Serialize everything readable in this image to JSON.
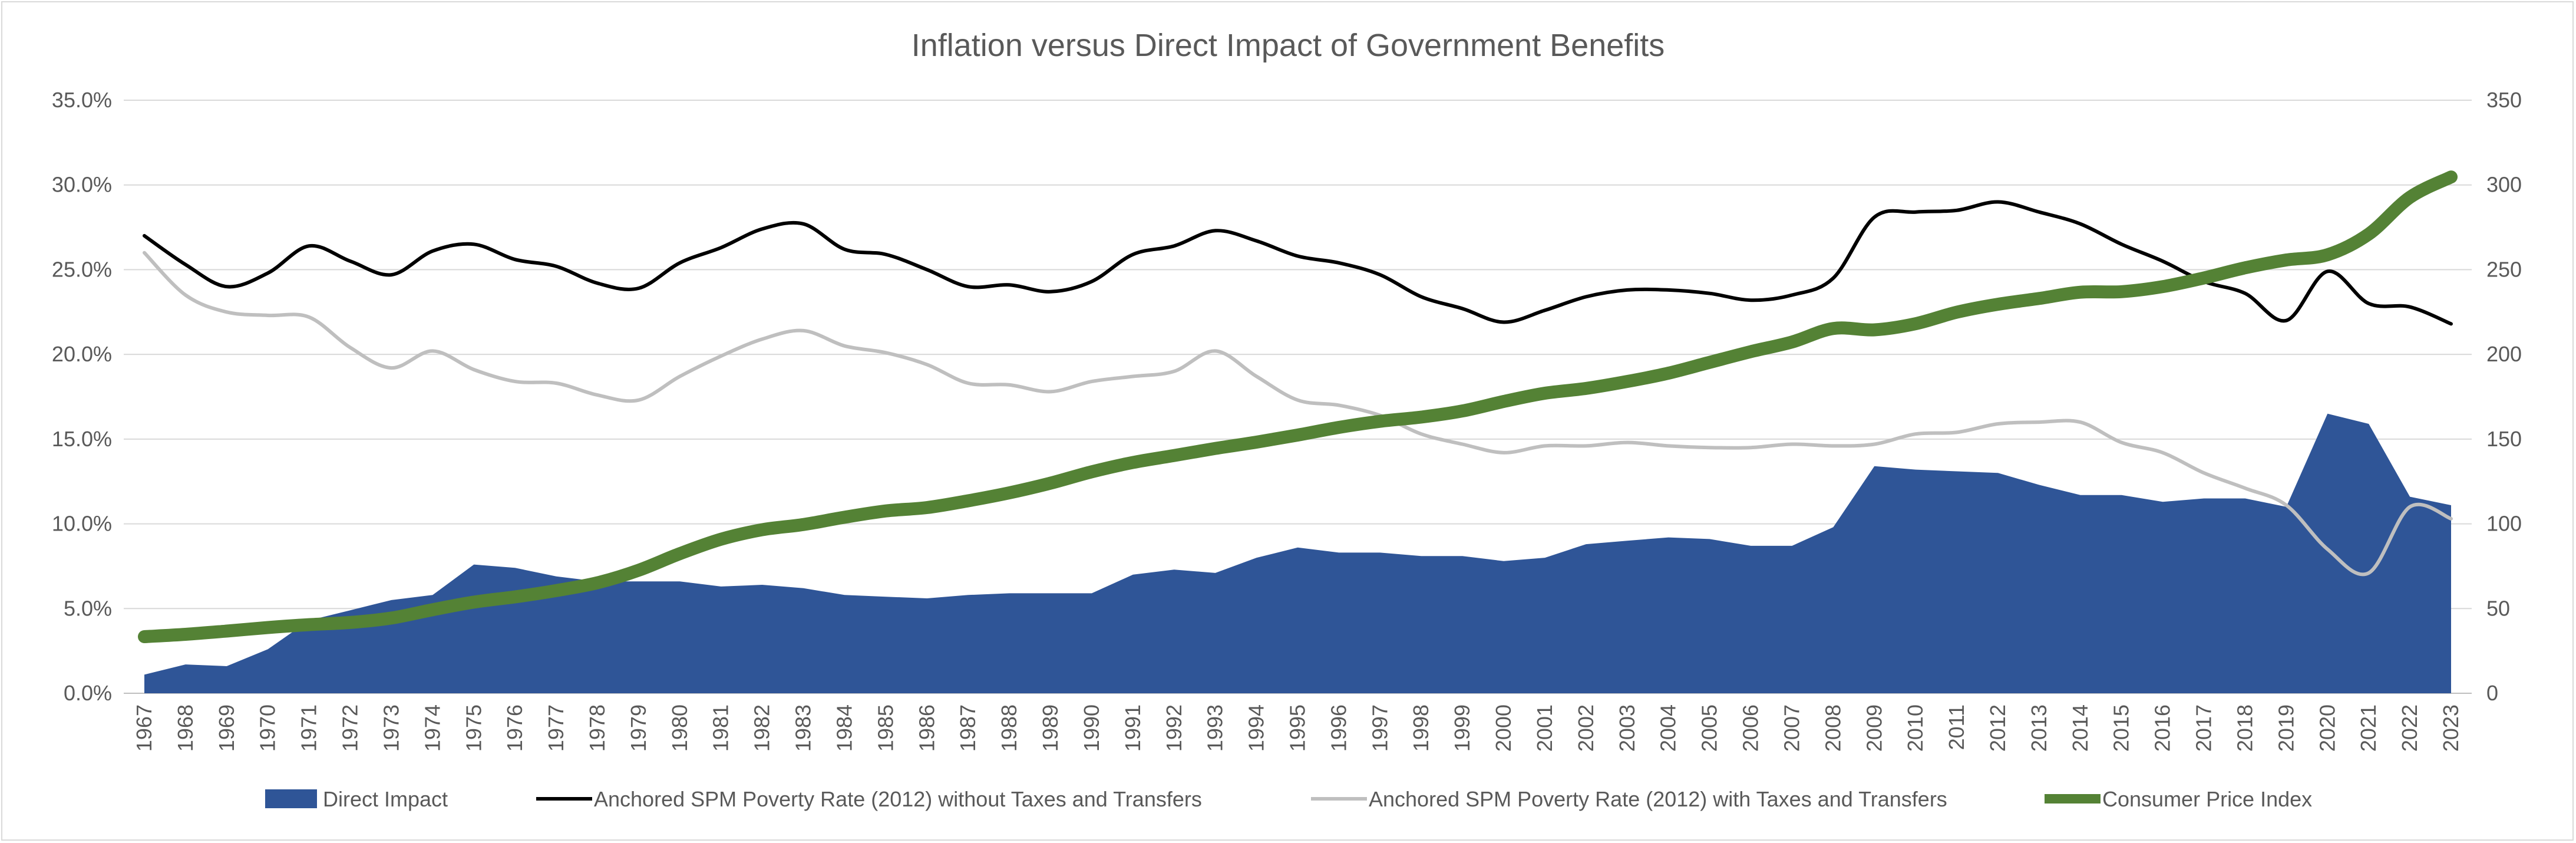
{
  "chart_data": {
    "type": "area",
    "title": "Inflation versus Direct Impact of Government Benefits",
    "x": [
      1967,
      1968,
      1969,
      1970,
      1971,
      1972,
      1973,
      1974,
      1975,
      1976,
      1977,
      1978,
      1979,
      1980,
      1981,
      1982,
      1983,
      1984,
      1985,
      1986,
      1987,
      1988,
      1989,
      1990,
      1991,
      1992,
      1993,
      1994,
      1995,
      1996,
      1997,
      1998,
      1999,
      2000,
      2001,
      2002,
      2003,
      2004,
      2005,
      2006,
      2007,
      2008,
      2009,
      2010,
      2011,
      2012,
      2013,
      2014,
      2015,
      2016,
      2017,
      2018,
      2019,
      2020,
      2021,
      2022,
      2023
    ],
    "x_tick_labels": [
      "1967",
      "1968",
      "1969",
      "1970",
      "1971",
      "1972",
      "1973",
      "1974",
      "1975",
      "1976",
      "1977",
      "1978",
      "1979",
      "1980",
      "1981",
      "1982",
      "1983",
      "1984",
      "1985",
      "1986",
      "1987",
      "1988",
      "1989",
      "1990",
      "1991",
      "1992",
      "1993",
      "1994",
      "1995",
      "1996",
      "1997",
      "1998",
      "1999",
      "2000",
      "2001",
      "2002",
      "2003",
      "2004",
      "2005",
      "2006",
      "2007",
      "2008",
      "2009",
      "2010",
      "2011",
      "2012",
      "2013",
      "2014",
      "2015",
      "2016",
      "2017",
      "2018",
      "2019",
      "2020",
      "2021",
      "2022",
      "2023"
    ],
    "y_left": {
      "ylim": [
        0,
        35
      ],
      "ticks": [
        "0.0%",
        "5.0%",
        "10.0%",
        "15.0%",
        "20.0%",
        "25.0%",
        "30.0%",
        "35.0%"
      ]
    },
    "y_right": {
      "ylim": [
        0,
        350
      ],
      "ticks": [
        "0",
        "50",
        "100",
        "150",
        "200",
        "250",
        "300",
        "350"
      ]
    },
    "grid": true,
    "legend_position": "bottom",
    "series": [
      {
        "name": "Direct Impact",
        "kind": "area",
        "axis": "left",
        "color": "#2f5597",
        "values": [
          1.1,
          1.7,
          1.6,
          2.6,
          4.3,
          4.9,
          5.5,
          5.8,
          7.6,
          7.4,
          6.9,
          6.6,
          6.6,
          6.6,
          6.3,
          6.4,
          6.2,
          5.8,
          5.7,
          5.6,
          5.8,
          5.9,
          5.9,
          5.9,
          7.0,
          7.3,
          7.1,
          8.0,
          8.6,
          8.3,
          8.3,
          8.1,
          8.1,
          7.8,
          8.0,
          8.8,
          9.0,
          9.2,
          9.1,
          8.7,
          8.7,
          9.8,
          13.4,
          13.2,
          13.1,
          13.0,
          12.3,
          11.7,
          11.7,
          11.3,
          11.5,
          11.5,
          11.0,
          16.5,
          15.9,
          11.6,
          11.1
        ]
      },
      {
        "name": "Anchored SPM Poverty Rate (2012) without Taxes and Transfers",
        "kind": "line",
        "axis": "left",
        "color": "#000000",
        "values": [
          27.0,
          25.3,
          24.0,
          24.8,
          26.4,
          25.5,
          24.7,
          26.1,
          26.5,
          25.6,
          25.2,
          24.2,
          23.9,
          25.4,
          26.3,
          27.4,
          27.7,
          26.2,
          25.9,
          25.0,
          24.0,
          24.1,
          23.7,
          24.3,
          25.9,
          26.4,
          27.3,
          26.7,
          25.8,
          25.4,
          24.7,
          23.4,
          22.7,
          21.9,
          22.6,
          23.4,
          23.8,
          23.8,
          23.6,
          23.2,
          23.5,
          24.5,
          28.1,
          28.4,
          28.5,
          29.0,
          28.4,
          27.7,
          26.5,
          25.5,
          24.3,
          23.6,
          22.0,
          24.9,
          23.0,
          22.8,
          21.8
        ]
      },
      {
        "name": "Anchored SPM Poverty Rate (2012) with Taxes and Transfers",
        "kind": "line",
        "axis": "left",
        "color": "#bfbfbf",
        "values": [
          26.0,
          23.5,
          22.5,
          22.3,
          22.2,
          20.4,
          19.2,
          20.2,
          19.1,
          18.4,
          18.3,
          17.6,
          17.3,
          18.7,
          19.9,
          20.9,
          21.4,
          20.5,
          20.1,
          19.4,
          18.3,
          18.2,
          17.8,
          18.4,
          18.7,
          19.0,
          20.2,
          18.7,
          17.3,
          17.0,
          16.4,
          15.3,
          14.7,
          14.2,
          14.6,
          14.6,
          14.8,
          14.6,
          14.5,
          14.5,
          14.7,
          14.6,
          14.7,
          15.3,
          15.4,
          15.9,
          16.0,
          16.0,
          14.8,
          14.2,
          13.0,
          12.1,
          11.1,
          8.5,
          7.1,
          11.0,
          10.3
        ]
      },
      {
        "name": "Consumer Price Index",
        "kind": "line",
        "axis": "right",
        "color": "#548235",
        "values": [
          33.4,
          34.8,
          36.7,
          38.8,
          40.5,
          41.8,
          44.4,
          49.3,
          53.8,
          56.9,
          60.6,
          65.2,
          72.6,
          82.4,
          90.9,
          96.5,
          99.6,
          103.9,
          107.6,
          109.6,
          113.6,
          118.3,
          124.0,
          130.7,
          136.2,
          140.3,
          144.5,
          148.2,
          152.4,
          156.9,
          160.5,
          163.0,
          166.6,
          172.2,
          177.1,
          179.9,
          184.0,
          188.9,
          195.3,
          201.6,
          207.3,
          215.3,
          214.5,
          218.1,
          224.9,
          229.6,
          233.0,
          236.7,
          237.0,
          240.0,
          245.1,
          251.1,
          255.7,
          258.8,
          271.0,
          292.7,
          304.7
        ]
      }
    ]
  }
}
